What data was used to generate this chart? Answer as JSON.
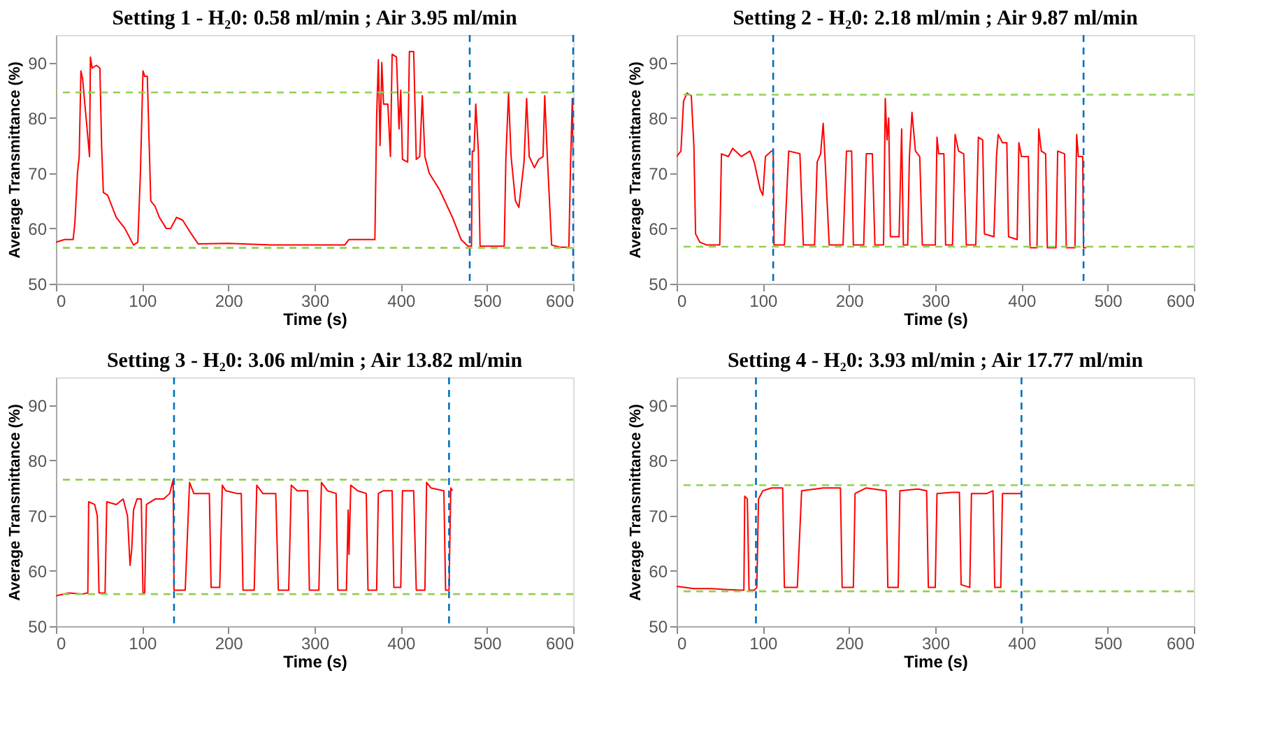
{
  "chart_data": [
    {
      "type": "line",
      "title": "Setting 1 -  H₂0: 0.58 ml/min ; Air 3.95 ml/min",
      "xlabel": "Time (s)",
      "ylabel": "Average Transmittance (%)",
      "xlim": [
        0,
        600
      ],
      "xticks": [
        0,
        100,
        200,
        300,
        400,
        500,
        600
      ],
      "ylim": [
        50,
        95
      ],
      "yticks": [
        50,
        60,
        70,
        80,
        90
      ],
      "line_style": "solid",
      "x": [
        0,
        10,
        20,
        22,
        25,
        27,
        29,
        31,
        35,
        39,
        40,
        42,
        47,
        51,
        53,
        55,
        60,
        65,
        70,
        80,
        90,
        95,
        98,
        101,
        103,
        106,
        110,
        115,
        120,
        128,
        133,
        140,
        147,
        155,
        165,
        200,
        250,
        300,
        335,
        340,
        370,
        372,
        374,
        376,
        378,
        380,
        385,
        388,
        390,
        395,
        398,
        400,
        402,
        408,
        410,
        415,
        418,
        422,
        425,
        428,
        433,
        445,
        460,
        470,
        478,
        482,
        483,
        485,
        487,
        490,
        492,
        500,
        520,
        522,
        525,
        528,
        533,
        537,
        543,
        546,
        549,
        555,
        560,
        565,
        567,
        570,
        575,
        585,
        595,
        597,
        599,
        600
      ],
      "series": [
        {
          "color": "#ff0000",
          "values": [
            57.5,
            58,
            58,
            61,
            70,
            73,
            88.5,
            87,
            80,
            73,
            91,
            89,
            89.5,
            89,
            75,
            66.5,
            66,
            64,
            62,
            60,
            57,
            57.5,
            70,
            88.5,
            87.5,
            87.5,
            65,
            64,
            62,
            60,
            60,
            62,
            61.5,
            59.5,
            57.2,
            57.3,
            57,
            57,
            57,
            58,
            58,
            80,
            90.5,
            75,
            90,
            82.5,
            82.5,
            73,
            91.5,
            91,
            78,
            85,
            72.5,
            72,
            92,
            92,
            72.5,
            73,
            84,
            73,
            70,
            67,
            62,
            58,
            56.8,
            56.8,
            74,
            74,
            82.5,
            74,
            56.8,
            56.8,
            56.8,
            73,
            84.5,
            73,
            65,
            63.8,
            72,
            83.5,
            73,
            71,
            72.5,
            73,
            84,
            73,
            57,
            56.6,
            56.6,
            72,
            83.5,
            73
          ]
        }
      ],
      "ref_lines": [
        {
          "axis": "y",
          "value": 84.6,
          "color": "#92d050",
          "line_style": "dashed"
        },
        {
          "axis": "y",
          "value": 56.5,
          "color": "#92d050",
          "line_style": "dashed"
        },
        {
          "axis": "x",
          "value": 480,
          "color": "#0070c0",
          "line_style": "dashed"
        },
        {
          "axis": "x",
          "value": 600,
          "color": "#0070c0",
          "line_style": "dashed"
        }
      ]
    },
    {
      "type": "line",
      "title": "Setting 2 -  H₂0: 2.18 ml/min ; Air 9.87 ml/min",
      "xlabel": "Time (s)",
      "ylabel": "Average Transmittance (%)",
      "xlim": [
        0,
        600
      ],
      "xticks": [
        0,
        100,
        200,
        300,
        400,
        500,
        600
      ],
      "ylim": [
        50,
        95
      ],
      "yticks": [
        50,
        60,
        70,
        80,
        90
      ],
      "line_style": "solid",
      "x": [
        0,
        5,
        8,
        12,
        17,
        20,
        22,
        27,
        35,
        50,
        52,
        60,
        65,
        75,
        85,
        90,
        97,
        100,
        103,
        110,
        112,
        113,
        125,
        130,
        143,
        147,
        160,
        163,
        167,
        170,
        172,
        177,
        193,
        197,
        203,
        205,
        217,
        220,
        227,
        230,
        240,
        242,
        244,
        246,
        248,
        258,
        261,
        263,
        268,
        270,
        273,
        277,
        282,
        285,
        300,
        302,
        304,
        310,
        312,
        320,
        323,
        327,
        333,
        336,
        347,
        350,
        355,
        357,
        368,
        371,
        373,
        378,
        383,
        385,
        395,
        397,
        400,
        408,
        410,
        418,
        420,
        423,
        428,
        430,
        440,
        442,
        450,
        452,
        462,
        464,
        466,
        471,
        472,
        475
      ],
      "series": [
        {
          "color": "#ff0000",
          "values": [
            73,
            74,
            83,
            84.5,
            84,
            75,
            59,
            57.5,
            57,
            57,
            73.5,
            73,
            74.5,
            73,
            74,
            72,
            67,
            66,
            73,
            74,
            74,
            57,
            57,
            74,
            73.5,
            57,
            57,
            72,
            73.5,
            79,
            73,
            57,
            57,
            74,
            74,
            57,
            57,
            73.5,
            73.5,
            57,
            57,
            83.5,
            76,
            80,
            58.5,
            58.5,
            78,
            57,
            57,
            73,
            81,
            74,
            73,
            57,
            57,
            76.5,
            73.5,
            73.5,
            57,
            57,
            77,
            74,
            73.5,
            57,
            57,
            76.5,
            76,
            59,
            58.5,
            73,
            77,
            75.5,
            75.5,
            58.5,
            58,
            75.5,
            73,
            73,
            56.5,
            56.5,
            78,
            74,
            73.5,
            56.5,
            56.5,
            74,
            73.5,
            56.5,
            56.5,
            77,
            73,
            73,
            56.5,
            56.5
          ]
        }
      ],
      "ref_lines": [
        {
          "axis": "y",
          "value": 84.2,
          "color": "#92d050",
          "line_style": "dashed"
        },
        {
          "axis": "y",
          "value": 56.7,
          "color": "#92d050",
          "line_style": "dashed"
        },
        {
          "axis": "x",
          "value": 112,
          "color": "#0070c0",
          "line_style": "dashed"
        },
        {
          "axis": "x",
          "value": 472,
          "color": "#0070c0",
          "line_style": "dashed"
        }
      ]
    },
    {
      "type": "line",
      "title": "Setting 3 -  H₂0: 3.06 ml/min ; Air 13.82 ml/min",
      "xlabel": "Time (s)",
      "ylabel": "Average Transmittance (%)",
      "xlim": [
        0,
        600
      ],
      "xticks": [
        0,
        100,
        200,
        300,
        400,
        500,
        600
      ],
      "ylim": [
        50,
        95
      ],
      "yticks": [
        50,
        60,
        70,
        80,
        90
      ],
      "line_style": "solid",
      "x": [
        0,
        15,
        30,
        37,
        38,
        45,
        48,
        50,
        57,
        59,
        70,
        78,
        83,
        86,
        88,
        90,
        94,
        99,
        101,
        103,
        105,
        115,
        125,
        132,
        136,
        137,
        150,
        155,
        160,
        172,
        178,
        180,
        190,
        193,
        197,
        210,
        215,
        217,
        230,
        233,
        240,
        255,
        258,
        270,
        273,
        280,
        292,
        294,
        305,
        308,
        315,
        325,
        327,
        337,
        339,
        340,
        342,
        350,
        360,
        362,
        372,
        374,
        380,
        390,
        392,
        400,
        402,
        415,
        418,
        428,
        430,
        435,
        450,
        452,
        456,
        458,
        460
      ],
      "series": [
        {
          "color": "#ff0000",
          "values": [
            55.5,
            56,
            55.8,
            56,
            72.5,
            72,
            70,
            56,
            56,
            72.5,
            72,
            73,
            70,
            61,
            64,
            71,
            73,
            73,
            56,
            56,
            72,
            73,
            73,
            74,
            76.5,
            56.5,
            56.5,
            76,
            74,
            74,
            74,
            57,
            57,
            75.5,
            74.5,
            74,
            74,
            56.5,
            56.5,
            75.5,
            74,
            74,
            56.5,
            56.5,
            75.5,
            74.5,
            74.5,
            56.5,
            56.5,
            76,
            74.5,
            74,
            56.5,
            56.5,
            71,
            63,
            75.5,
            74.5,
            74,
            56.5,
            56.5,
            74,
            74.5,
            74.5,
            57,
            57,
            74.5,
            74.5,
            56.5,
            56.5,
            76,
            75,
            74.5,
            56.5,
            56.5,
            75,
            74.5
          ]
        }
      ],
      "ref_lines": [
        {
          "axis": "y",
          "value": 76.5,
          "color": "#92d050",
          "line_style": "dashed"
        },
        {
          "axis": "y",
          "value": 55.8,
          "color": "#92d050",
          "line_style": "dashed"
        },
        {
          "axis": "x",
          "value": 137,
          "color": "#0070c0",
          "line_style": "dashed"
        },
        {
          "axis": "x",
          "value": 456,
          "color": "#0070c0",
          "line_style": "dashed"
        }
      ]
    },
    {
      "type": "line",
      "title": "Setting 4 -  H₂0: 3.93 ml/min ; Air 17.77 ml/min",
      "xlabel": "Time (s)",
      "ylabel": "Average Transmittance (%)",
      "xlim": [
        0,
        600
      ],
      "xticks": [
        0,
        100,
        200,
        300,
        400,
        500,
        600
      ],
      "ylim": [
        50,
        95
      ],
      "yticks": [
        50,
        60,
        70,
        80,
        90
      ],
      "line_style": "solid",
      "x": [
        0,
        20,
        40,
        60,
        75,
        78,
        79,
        82,
        84,
        90,
        93,
        95,
        100,
        110,
        123,
        125,
        140,
        145,
        170,
        190,
        192,
        205,
        207,
        220,
        243,
        245,
        257,
        259,
        280,
        290,
        292,
        300,
        302,
        320,
        328,
        330,
        340,
        342,
        360,
        367,
        369,
        376,
        378,
        390,
        400
      ],
      "series": [
        {
          "color": "#ff0000",
          "values": [
            57.2,
            56.8,
            56.8,
            56.6,
            56.5,
            56.5,
            73.5,
            73,
            56.5,
            56.5,
            57,
            73,
            74.5,
            75,
            75,
            57,
            57,
            74.5,
            75,
            75,
            57,
            57,
            74,
            75,
            74.5,
            57,
            57,
            74.5,
            74.8,
            74.5,
            57,
            57,
            74,
            74.2,
            74.2,
            57.5,
            57,
            74,
            74,
            74.5,
            57,
            57,
            74,
            74,
            74
          ]
        }
      ],
      "ref_lines": [
        {
          "axis": "y",
          "value": 75.5,
          "color": "#92d050",
          "line_style": "dashed"
        },
        {
          "axis": "y",
          "value": 56.3,
          "color": "#92d050",
          "line_style": "dashed"
        },
        {
          "axis": "x",
          "value": 92,
          "color": "#0070c0",
          "line_style": "dashed"
        },
        {
          "axis": "x",
          "value": 400,
          "color": "#0070c0",
          "line_style": "dashed"
        }
      ]
    }
  ]
}
